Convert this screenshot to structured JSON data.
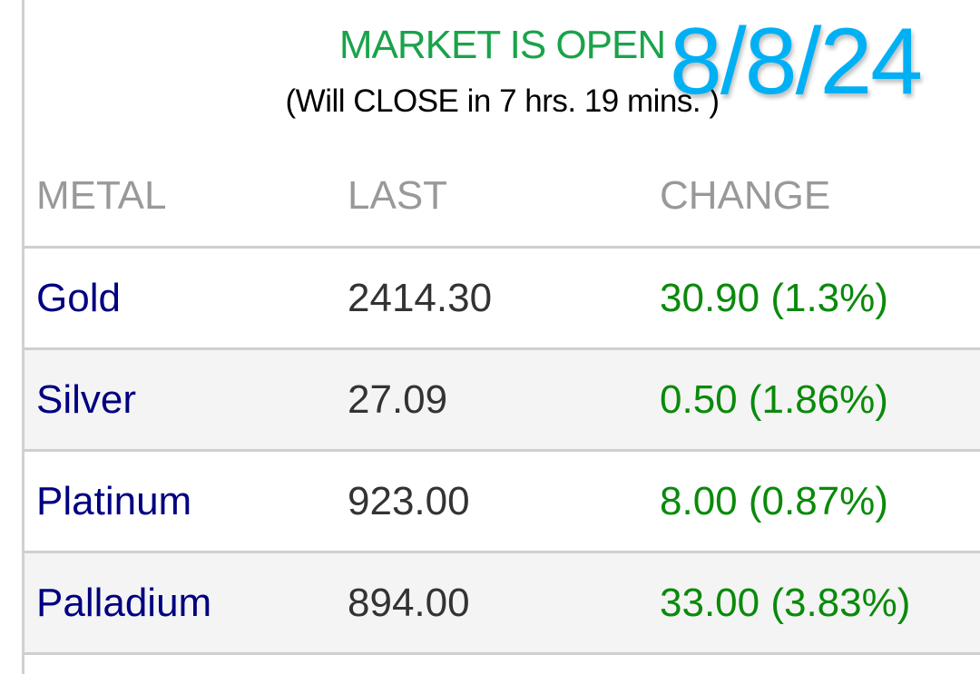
{
  "market": {
    "status": "MARKET IS OPEN",
    "close_info": "(Will CLOSE in 7 hrs. 19 mins. )",
    "date": "8/8/24"
  },
  "table": {
    "headers": [
      "METAL",
      "LAST",
      "CHANGE"
    ],
    "rows": [
      {
        "metal": "Gold",
        "last": "2414.30",
        "change": "30.90 (1.3%)"
      },
      {
        "metal": "Silver",
        "last": "27.09",
        "change": "0.50 (1.86%)"
      },
      {
        "metal": "Platinum",
        "last": "923.00",
        "change": "8.00 (0.87%)"
      },
      {
        "metal": "Palladium",
        "last": "894.00",
        "change": "33.00 (3.83%)"
      }
    ]
  },
  "colors": {
    "status": "#1aa34a",
    "date": "#00b0f4",
    "metal": "#000080",
    "change_positive": "#0a8a0a"
  }
}
